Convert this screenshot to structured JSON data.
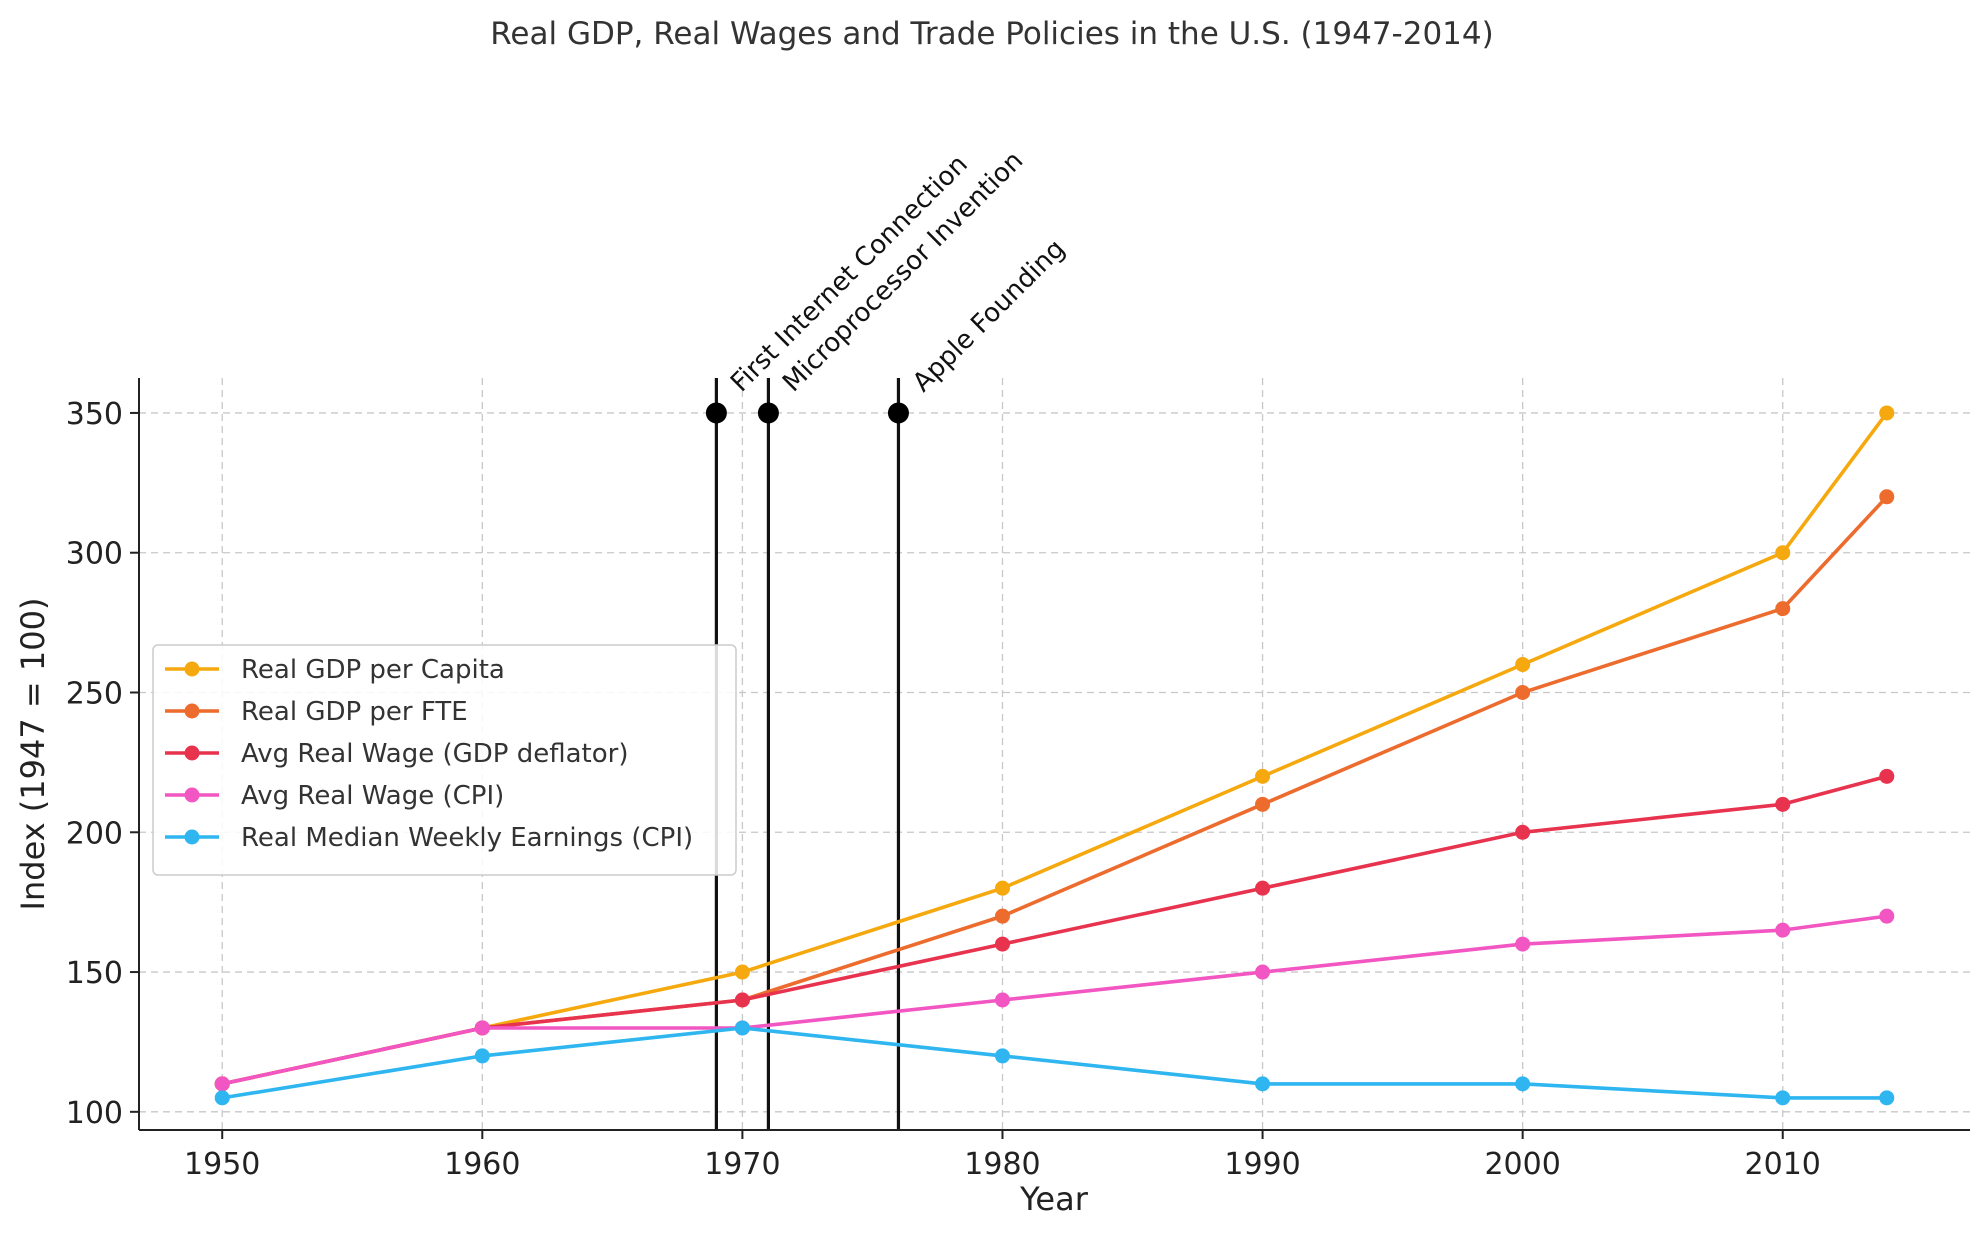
{
  "chart_data": {
    "type": "line",
    "title": "Real GDP, Real Wages and Trade Policies in the U.S. (1947-2014)",
    "xlabel": "Year",
    "ylabel": "Index (1947 = 100)",
    "xlim": [
      1946.8,
      2017.2
    ],
    "ylim": [
      93.5,
      362.5
    ],
    "x_ticks": [
      1950,
      1960,
      1970,
      1980,
      1990,
      2000,
      2010
    ],
    "y_ticks": [
      100,
      150,
      200,
      250,
      300,
      350
    ],
    "grid": true,
    "legend_position": "center-left",
    "x": [
      1950,
      1960,
      1970,
      1980,
      1990,
      2000,
      2010,
      2014
    ],
    "series": [
      {
        "name": "Real GDP per Capita",
        "color": "#f5a90e",
        "values": [
          110,
          130,
          150,
          180,
          220,
          260,
          300,
          350
        ]
      },
      {
        "name": "Real GDP per FTE",
        "color": "#ec6b2d",
        "values": [
          110,
          130,
          140,
          170,
          210,
          250,
          280,
          320
        ]
      },
      {
        "name": "Avg Real Wage (GDP deflator)",
        "color": "#e8334f",
        "values": [
          110,
          130,
          140,
          160,
          180,
          200,
          210,
          220
        ]
      },
      {
        "name": "Avg Real Wage (CPI)",
        "color": "#f156c2",
        "values": [
          110,
          130,
          130,
          140,
          150,
          160,
          165,
          170
        ]
      },
      {
        "name": "Real Median Weekly Earnings (CPI)",
        "color": "#2fb6f0",
        "values": [
          105,
          120,
          130,
          120,
          110,
          110,
          105,
          105
        ]
      }
    ],
    "annotations": [
      {
        "label": "First Internet Connection",
        "x": 1969,
        "y": 350
      },
      {
        "label": "Microprocessor Invention",
        "x": 1971,
        "y": 350
      },
      {
        "label": "Apple Founding",
        "x": 1976,
        "y": 350
      }
    ]
  }
}
